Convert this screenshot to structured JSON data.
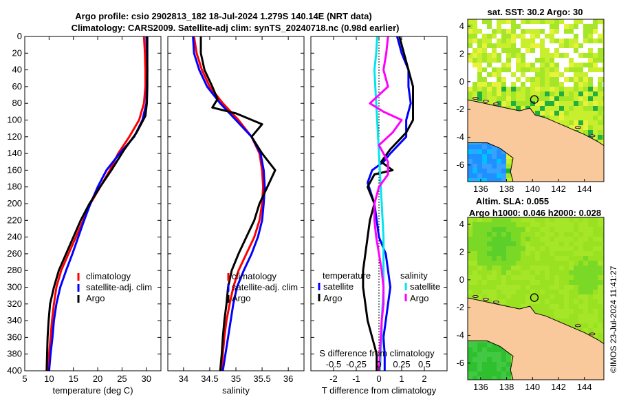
{
  "title": {
    "line1": "Argo profile: csio 2902813_182 18-Jul-2024 1.279S 140.14E (NRT data)",
    "line2": "Climatology: CARS2009. Satellite-adj clim: synTS_20240718.nc (0.98d earlier)"
  },
  "copyright": "©IMOS 23-Jul-2024 11:41:27",
  "colors": {
    "climatology": "#ff0000",
    "satellite": "#0000ff",
    "argo": "#000000",
    "sat_salinity": "#00e5ee",
    "argo_salinity": "#ff00ff",
    "land": "#f9c89b",
    "ocean_green": "#8ee01e",
    "ocean_blue": "#1e90ff"
  },
  "chart_data": [
    {
      "type": "line",
      "title": "",
      "xlabel": "temperature (deg C)",
      "ylabel": "",
      "xlim": [
        5,
        33
      ],
      "ylim": [
        400,
        0
      ],
      "xticks": [
        "5",
        "10",
        "15",
        "20",
        "25",
        "30"
      ],
      "yticks": [
        "0",
        "20",
        "40",
        "60",
        "80",
        "100",
        "120",
        "140",
        "160",
        "180",
        "200",
        "220",
        "240",
        "260",
        "280",
        "300",
        "320",
        "340",
        "360",
        "380",
        "400"
      ],
      "legend": [
        "climatology",
        "satellite-adj. clim",
        "Argo"
      ],
      "series": [
        {
          "name": "climatology",
          "color": "#ff0000",
          "points": [
            [
              29.5,
              0
            ],
            [
              29.7,
              20
            ],
            [
              29.8,
              40
            ],
            [
              29.8,
              60
            ],
            [
              29.5,
              80
            ],
            [
              28.5,
              100
            ],
            [
              26.5,
              120
            ],
            [
              24.2,
              140
            ],
            [
              22.5,
              160
            ],
            [
              20.5,
              180
            ],
            [
              18.5,
              200
            ],
            [
              17,
              220
            ],
            [
              15.5,
              240
            ],
            [
              14,
              260
            ],
            [
              12.5,
              280
            ],
            [
              11.5,
              300
            ],
            [
              11,
              320
            ],
            [
              10.6,
              340
            ],
            [
              10.3,
              360
            ],
            [
              10,
              380
            ],
            [
              9.7,
              400
            ]
          ]
        },
        {
          "name": "satellite-adj. clim",
          "color": "#0000ff",
          "points": [
            [
              30,
              0
            ],
            [
              30.1,
              20
            ],
            [
              30.2,
              40
            ],
            [
              30.1,
              60
            ],
            [
              30,
              80
            ],
            [
              29.2,
              100
            ],
            [
              27.5,
              120
            ],
            [
              24.5,
              140
            ],
            [
              21.8,
              160
            ],
            [
              20,
              180
            ],
            [
              18.5,
              200
            ],
            [
              17.2,
              220
            ],
            [
              16,
              240
            ],
            [
              14.8,
              260
            ],
            [
              13.5,
              280
            ],
            [
              12.3,
              300
            ],
            [
              11.5,
              320
            ],
            [
              11,
              340
            ],
            [
              10.7,
              360
            ],
            [
              10.3,
              380
            ],
            [
              10,
              400
            ]
          ]
        },
        {
          "name": "Argo",
          "color": "#000000",
          "points": [
            [
              30.2,
              0
            ],
            [
              30.2,
              20
            ],
            [
              30.2,
              40
            ],
            [
              30.2,
              60
            ],
            [
              30.1,
              80
            ],
            [
              29.8,
              95
            ],
            [
              28,
              115
            ],
            [
              25.5,
              135
            ],
            [
              22.8,
              160
            ],
            [
              20.5,
              180
            ],
            [
              18.3,
              200
            ],
            [
              16.5,
              220
            ],
            [
              15,
              240
            ],
            [
              13.5,
              260
            ],
            [
              12,
              280
            ],
            [
              11,
              300
            ],
            [
              10.2,
              320
            ],
            [
              9.9,
              340
            ],
            [
              9.7,
              360
            ],
            [
              9.6,
              380
            ],
            [
              9.5,
              400
            ]
          ]
        }
      ]
    },
    {
      "type": "line",
      "title": "",
      "xlabel": "salinity",
      "ylabel": "",
      "xlim": [
        33.7,
        36.3
      ],
      "ylim": [
        400,
        0
      ],
      "xticks": [
        "34",
        "34.5",
        "35",
        "35.5",
        "36"
      ],
      "legend": [
        "climatology",
        "satellite-adj. clim",
        "Argo"
      ],
      "series": [
        {
          "name": "climatology",
          "color": "#ff0000",
          "points": [
            [
              34.2,
              0
            ],
            [
              34.25,
              20
            ],
            [
              34.35,
              40
            ],
            [
              34.5,
              60
            ],
            [
              34.75,
              80
            ],
            [
              35.05,
              100
            ],
            [
              35.3,
              120
            ],
            [
              35.45,
              140
            ],
            [
              35.5,
              160
            ],
            [
              35.52,
              180
            ],
            [
              35.5,
              200
            ],
            [
              35.45,
              220
            ],
            [
              35.35,
              240
            ],
            [
              35.2,
              260
            ],
            [
              35.05,
              280
            ],
            [
              34.95,
              300
            ],
            [
              34.88,
              320
            ],
            [
              34.82,
              340
            ],
            [
              34.78,
              360
            ],
            [
              34.75,
              380
            ],
            [
              34.72,
              400
            ]
          ]
        },
        {
          "name": "satellite-adj. clim",
          "color": "#0000ff",
          "points": [
            [
              34.18,
              0
            ],
            [
              34.2,
              20
            ],
            [
              34.3,
              40
            ],
            [
              34.45,
              60
            ],
            [
              34.7,
              80
            ],
            [
              35.0,
              100
            ],
            [
              35.3,
              120
            ],
            [
              35.47,
              140
            ],
            [
              35.53,
              160
            ],
            [
              35.55,
              180
            ],
            [
              35.53,
              200
            ],
            [
              35.5,
              220
            ],
            [
              35.42,
              240
            ],
            [
              35.3,
              260
            ],
            [
              35.15,
              280
            ],
            [
              35.02,
              300
            ],
            [
              34.95,
              320
            ],
            [
              34.9,
              340
            ],
            [
              34.85,
              360
            ],
            [
              34.8,
              380
            ],
            [
              34.75,
              400
            ]
          ]
        },
        {
          "name": "Argo",
          "color": "#000000",
          "points": [
            [
              34.33,
              0
            ],
            [
              34.33,
              20
            ],
            [
              34.4,
              40
            ],
            [
              34.55,
              60
            ],
            [
              34.65,
              75
            ],
            [
              34.55,
              85
            ],
            [
              35.0,
              92
            ],
            [
              35.5,
              105
            ],
            [
              35.3,
              120
            ],
            [
              35.5,
              140
            ],
            [
              35.75,
              160
            ],
            [
              35.6,
              180
            ],
            [
              35.45,
              200
            ],
            [
              35.35,
              220
            ],
            [
              35.2,
              240
            ],
            [
              35.05,
              260
            ],
            [
              34.92,
              280
            ],
            [
              34.85,
              300
            ],
            [
              34.82,
              320
            ],
            [
              34.78,
              340
            ],
            [
              34.75,
              360
            ],
            [
              34.73,
              380
            ],
            [
              34.7,
              400
            ]
          ]
        }
      ]
    },
    {
      "type": "line",
      "title": "",
      "xlabel": "T difference from climatology",
      "xlabel_top": "S difference from climatology",
      "ylabel": "",
      "xlim": [
        -3,
        3
      ],
      "ylim": [
        400,
        0
      ],
      "xticks": [
        "-2",
        "-1",
        "0",
        "1",
        "2"
      ],
      "xticks_top": [
        "-0.5",
        "-0.25",
        "0",
        "0.25",
        "0.5"
      ],
      "legend_left_title": "temperature",
      "legend_right_title": "salinity",
      "legend_left": [
        "satellite",
        "Argo"
      ],
      "legend_right": [
        "satellite",
        "Argo"
      ],
      "series": [
        {
          "name": "temperature satellite",
          "color": "#0000ff",
          "points": [
            [
              0.8,
              0
            ],
            [
              1.0,
              20
            ],
            [
              1.3,
              40
            ],
            [
              1.3,
              60
            ],
            [
              1.4,
              80
            ],
            [
              1.2,
              100
            ],
            [
              1.2,
              120
            ],
            [
              0.5,
              140
            ],
            [
              0.2,
              150
            ],
            [
              -0.3,
              160
            ],
            [
              -0.5,
              175
            ],
            [
              -0.2,
              200
            ],
            [
              -0.1,
              220
            ],
            [
              0.0,
              240
            ],
            [
              0.3,
              260
            ],
            [
              0.4,
              280
            ],
            [
              0.5,
              300
            ],
            [
              0.4,
              320
            ],
            [
              0.3,
              340
            ],
            [
              0.2,
              360
            ],
            [
              0.25,
              380
            ],
            [
              0.25,
              400
            ]
          ]
        },
        {
          "name": "temperature Argo",
          "color": "#000000",
          "points": [
            [
              0.9,
              0
            ],
            [
              1.1,
              20
            ],
            [
              1.3,
              40
            ],
            [
              1.5,
              60
            ],
            [
              1.5,
              80
            ],
            [
              1.5,
              100
            ],
            [
              1.2,
              115
            ],
            [
              0.5,
              135
            ],
            [
              0.1,
              150
            ],
            [
              0.6,
              160
            ],
            [
              -0.2,
              165
            ],
            [
              -0.5,
              180
            ],
            [
              -0.2,
              200
            ],
            [
              -0.4,
              220
            ],
            [
              -0.5,
              240
            ],
            [
              -0.6,
              260
            ],
            [
              -0.7,
              280
            ],
            [
              -0.7,
              300
            ],
            [
              -0.6,
              320
            ],
            [
              -0.5,
              340
            ],
            [
              -0.3,
              360
            ],
            [
              -0.1,
              380
            ],
            [
              -0.1,
              400
            ]
          ]
        },
        {
          "name": "salinity satellite",
          "color": "#00e5ee",
          "points": [
            [
              -0.02,
              0
            ],
            [
              -0.03,
              20
            ],
            [
              -0.05,
              40
            ],
            [
              -0.04,
              60
            ],
            [
              -0.03,
              80
            ],
            [
              -0.02,
              100
            ],
            [
              -0.01,
              120
            ],
            [
              0.0,
              140
            ],
            [
              0.01,
              160
            ],
            [
              0.02,
              180
            ],
            [
              0.03,
              200
            ],
            [
              0.04,
              220
            ],
            [
              0.05,
              240
            ],
            [
              0.05,
              260
            ],
            [
              0.05,
              280
            ],
            [
              0.05,
              300
            ],
            [
              0.04,
              320
            ],
            [
              0.03,
              340
            ],
            [
              0.03,
              360
            ],
            [
              0.02,
              380
            ],
            [
              0.01,
              400
            ]
          ]
        },
        {
          "name": "salinity Argo",
          "color": "#ff00ff",
          "points": [
            [
              0.1,
              0
            ],
            [
              0.08,
              20
            ],
            [
              0.05,
              40
            ],
            [
              0.1,
              60
            ],
            [
              -0.1,
              80
            ],
            [
              0.05,
              90
            ],
            [
              0.25,
              100
            ],
            [
              0.15,
              115
            ],
            [
              0.0,
              130
            ],
            [
              0.1,
              150
            ],
            [
              0.1,
              165
            ],
            [
              0.0,
              180
            ],
            [
              -0.05,
              200
            ],
            [
              -0.05,
              220
            ],
            [
              -0.03,
              240
            ],
            [
              0.0,
              260
            ],
            [
              0.03,
              280
            ],
            [
              0.05,
              300
            ],
            [
              0.05,
              320
            ],
            [
              0.03,
              340
            ],
            [
              0.02,
              360
            ],
            [
              0.01,
              380
            ],
            [
              0.0,
              400
            ]
          ]
        }
      ]
    },
    {
      "type": "heatmap",
      "title": "sat. SST: 30.2 Argo: 30",
      "xlabel": "",
      "ylabel": "",
      "xlim": [
        135,
        145.5
      ],
      "ylim": [
        -7.2,
        4.5
      ],
      "xticks": [
        "136",
        "138",
        "140",
        "142",
        "144"
      ],
      "yticks": [
        "4",
        "2",
        "0",
        "-2",
        "-4",
        "-6"
      ],
      "marker": {
        "lon": 140.14,
        "lat": -1.279
      }
    },
    {
      "type": "heatmap",
      "title": "Altim. SLA: 0.055",
      "subtitle": "Argo h1000: 0.046 h2000: 0.028",
      "xlabel": "",
      "ylabel": "",
      "xlim": [
        135,
        145.5
      ],
      "ylim": [
        -7.2,
        4.5
      ],
      "xticks": [
        "136",
        "138",
        "140",
        "142",
        "144"
      ],
      "yticks": [
        "4",
        "2",
        "0",
        "-2",
        "-4",
        "-6"
      ],
      "marker": {
        "lon": 140.14,
        "lat": -1.279
      }
    }
  ]
}
